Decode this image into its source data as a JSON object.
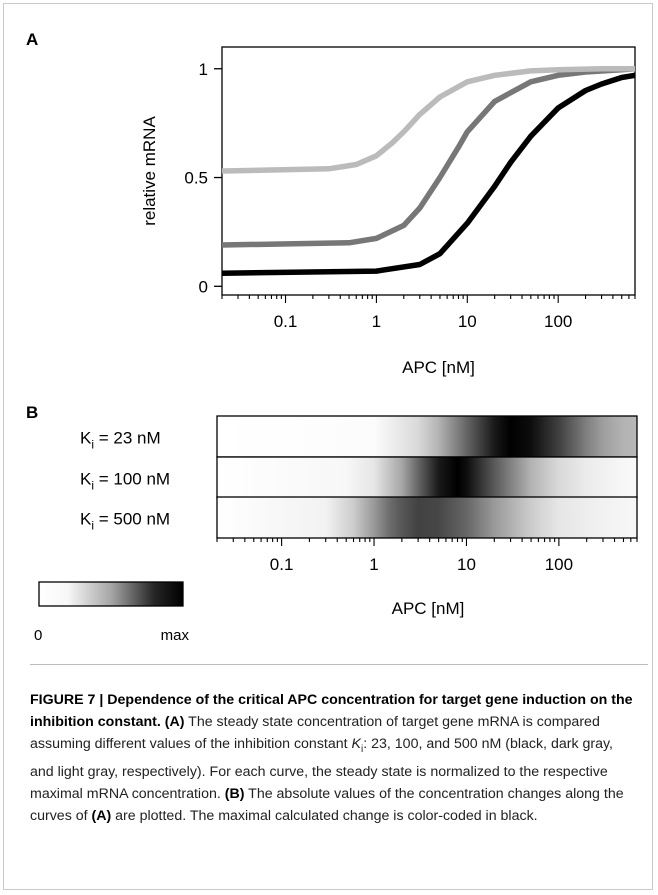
{
  "panel_a": {
    "letter": "A"
  },
  "panel_b": {
    "letter": "B"
  },
  "chart_data": [
    {
      "type": "line",
      "xscale": "log",
      "xlabel": "APC [nM]",
      "ylabel": "relative mRNA",
      "xlim": [
        0.02,
        700
      ],
      "ylim": [
        -0.04,
        1.1
      ],
      "xticks": [
        0.1,
        1,
        10,
        100
      ],
      "xtick_labels": [
        "0.1",
        "1",
        "10",
        "100"
      ],
      "yticks": [
        0,
        0.5,
        1
      ],
      "ytick_labels": [
        "0",
        "0.5",
        "1"
      ],
      "legend": "none",
      "series": [
        {
          "color": "#000000",
          "x": [
            0.02,
            1,
            3,
            5,
            10,
            20,
            30,
            50,
            100,
            200,
            300,
            500,
            700
          ],
          "y": [
            0.06,
            0.07,
            0.1,
            0.15,
            0.29,
            0.46,
            0.57,
            0.69,
            0.82,
            0.9,
            0.93,
            0.96,
            0.97
          ]
        },
        {
          "color": "#777777",
          "x": [
            0.02,
            0.5,
            1,
            2,
            3,
            5,
            8,
            10,
            20,
            50,
            100,
            200,
            500,
            700
          ],
          "y": [
            0.19,
            0.2,
            0.22,
            0.28,
            0.36,
            0.5,
            0.64,
            0.71,
            0.85,
            0.94,
            0.97,
            0.985,
            0.995,
            1.0
          ]
        },
        {
          "color": "#bbbbbb",
          "x": [
            0.02,
            0.3,
            0.6,
            1,
            1.5,
            2,
            3,
            5,
            10,
            20,
            50,
            100,
            300,
            700
          ],
          "y": [
            0.53,
            0.54,
            0.56,
            0.6,
            0.66,
            0.71,
            0.79,
            0.87,
            0.94,
            0.97,
            0.99,
            0.995,
            1.0,
            1.0
          ]
        }
      ]
    },
    {
      "type": "heatmap",
      "xscale": "log",
      "xlabel": "APC [nM]",
      "xlim": [
        0.02,
        700
      ],
      "xticks": [
        0.1,
        1,
        10,
        100
      ],
      "xtick_labels": [
        "0.1",
        "1",
        "10",
        "100"
      ],
      "rows": [
        {
          "label_main": "K",
          "label_sub": "i",
          "label_rest": " =   23 nM",
          "x": [
            0.02,
            1,
            3,
            5,
            10,
            20,
            30,
            50,
            100,
            200,
            300,
            500,
            700
          ],
          "intensity": [
            0,
            0.01,
            0.15,
            0.3,
            0.6,
            0.9,
            1.0,
            0.95,
            0.75,
            0.5,
            0.38,
            0.3,
            0.28
          ]
        },
        {
          "label_main": "K",
          "label_sub": "i",
          "label_rest": " = 100 nM",
          "x": [
            0.02,
            0.5,
            1,
            2,
            3,
            5,
            8,
            10,
            20,
            50,
            100,
            200,
            500,
            700
          ],
          "intensity": [
            0,
            0.03,
            0.1,
            0.35,
            0.6,
            0.9,
            1.0,
            0.95,
            0.65,
            0.3,
            0.15,
            0.08,
            0.03,
            0.02
          ]
        },
        {
          "label_main": "K",
          "label_sub": "i",
          "label_rest": " = 500 nM",
          "x": [
            0.02,
            0.3,
            0.6,
            1,
            1.5,
            2,
            3,
            5,
            10,
            20,
            50,
            100,
            300,
            700
          ],
          "intensity": [
            0,
            0.05,
            0.2,
            0.4,
            0.58,
            0.66,
            0.74,
            0.72,
            0.6,
            0.4,
            0.2,
            0.1,
            0.05,
            0.03
          ]
        }
      ],
      "colorbar": {
        "min_label": "0",
        "max_label": "max"
      }
    }
  ],
  "caption": {
    "title_bold": "FIGURE 7 | Dependence of the critical APC concentration for target gene induction on the inhibition constant.",
    "a_label": "(A)",
    "a_text_1": " The steady state concentration of target gene mRNA is compared assuming different values of the inhibition constant ",
    "a_symbol": "K",
    "a_symbol_sub": "i",
    "a_text_2": ": 23, 100, and 500 nM (black, dark gray, and light gray, respectively). For each curve, the steady state is normalized to the respective maximal mRNA concentration. ",
    "b_label": "(B)",
    "b_text_1": " The absolute values of the concentration changes along the curves of ",
    "b_ref": "(A)",
    "b_text_2": " are plotted. The maximal calculated change is color-coded in black."
  }
}
